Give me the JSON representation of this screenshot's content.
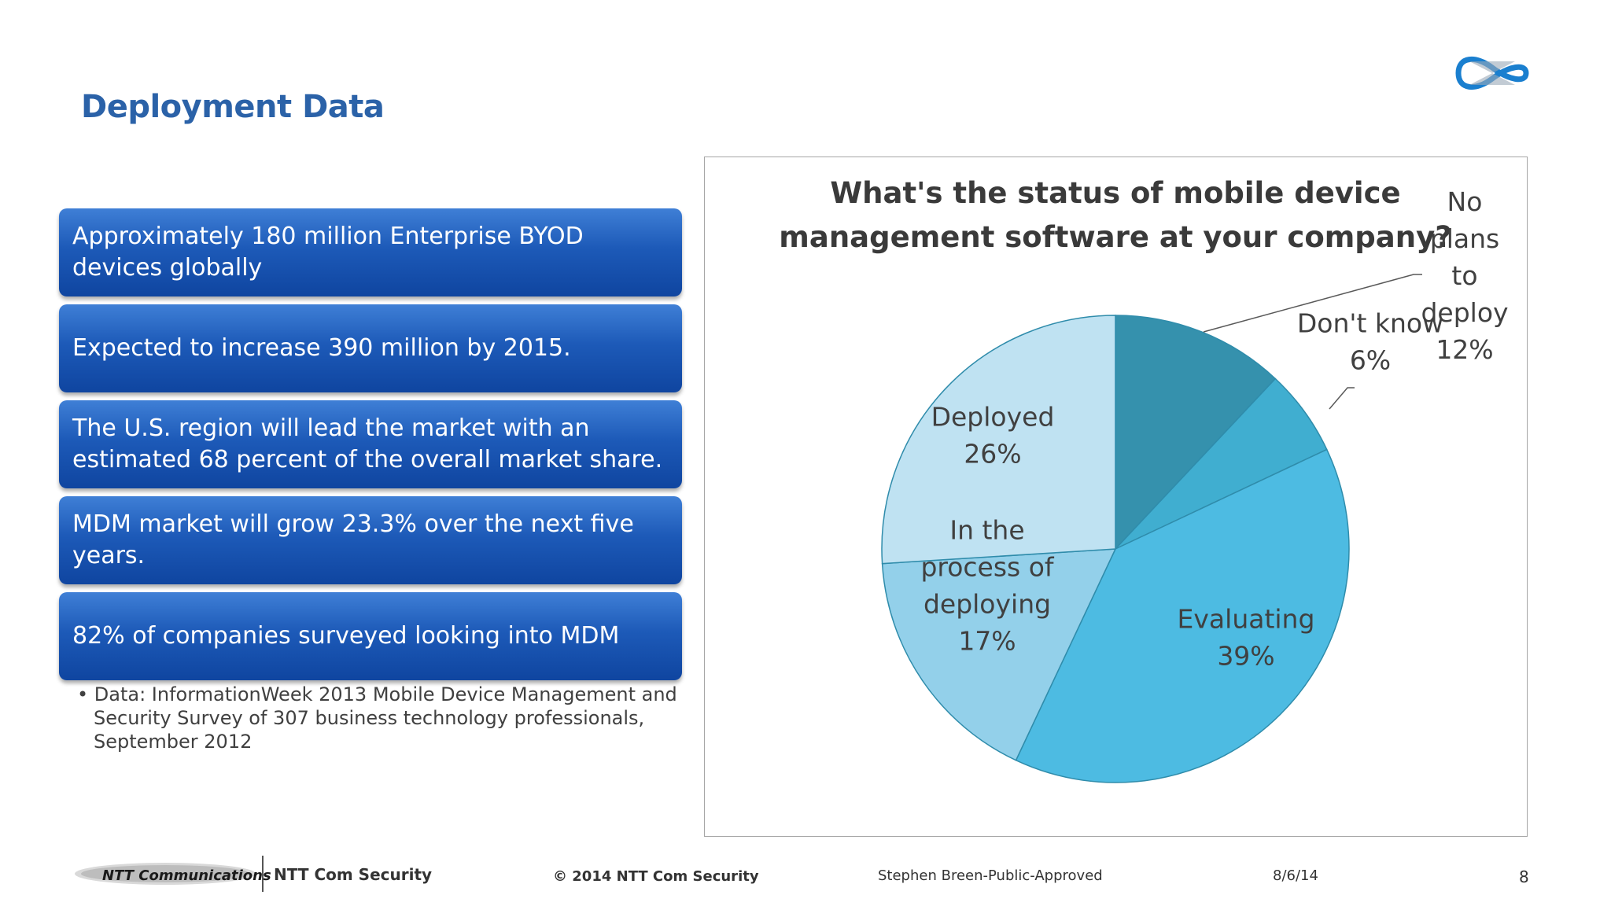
{
  "slide": {
    "title": "Deployment Data",
    "page_number": "8"
  },
  "bullets": [
    "Approximately 180 million Enterprise BYOD devices globally",
    "Expected to increase 390 million by 2015.",
    "The U.S. region will lead the market with an estimated 68 percent of the overall market share.",
    "MDM market will grow 23.3% over the next five years.",
    "82% of companies surveyed looking into MDM"
  ],
  "source_note": "• Data: InformationWeek 2013 Mobile Device Management and Security Survey of 307 business technology professionals, September 2012",
  "footer": {
    "logo_text": "NTT Communications",
    "brand": "NTT Com Security",
    "copyright": "© 2014 NTT Com Security",
    "classification": "Stephen Breen-Public-Approved",
    "date": "8/6/14"
  },
  "colors": {
    "title": "#2b62a8",
    "box_top": "#3f7fd6",
    "box_bottom": "#0f45a0",
    "pie_no_plans": "#3591ad",
    "pie_dont_know": "#40aed0",
    "pie_evaluating": "#4dbbe2",
    "pie_in_process": "#93d0ea",
    "pie_deployed": "#bfe2f2"
  },
  "chart_data": {
    "type": "pie",
    "title": "What's the status of mobile device management software at your company?",
    "slices": [
      {
        "label": [
          "No",
          "plans",
          "to",
          "deploy"
        ],
        "value": 12,
        "value_label": "12%"
      },
      {
        "label": [
          "Don't know"
        ],
        "value": 6,
        "value_label": "6%"
      },
      {
        "label": [
          "Evaluating"
        ],
        "value": 39,
        "value_label": "39%"
      },
      {
        "label": [
          "In the",
          "process of",
          "deploying"
        ],
        "value": 17,
        "value_label": "17%"
      },
      {
        "label": [
          "Deployed"
        ],
        "value": 26,
        "value_label": "26%"
      }
    ],
    "legend": "none"
  }
}
